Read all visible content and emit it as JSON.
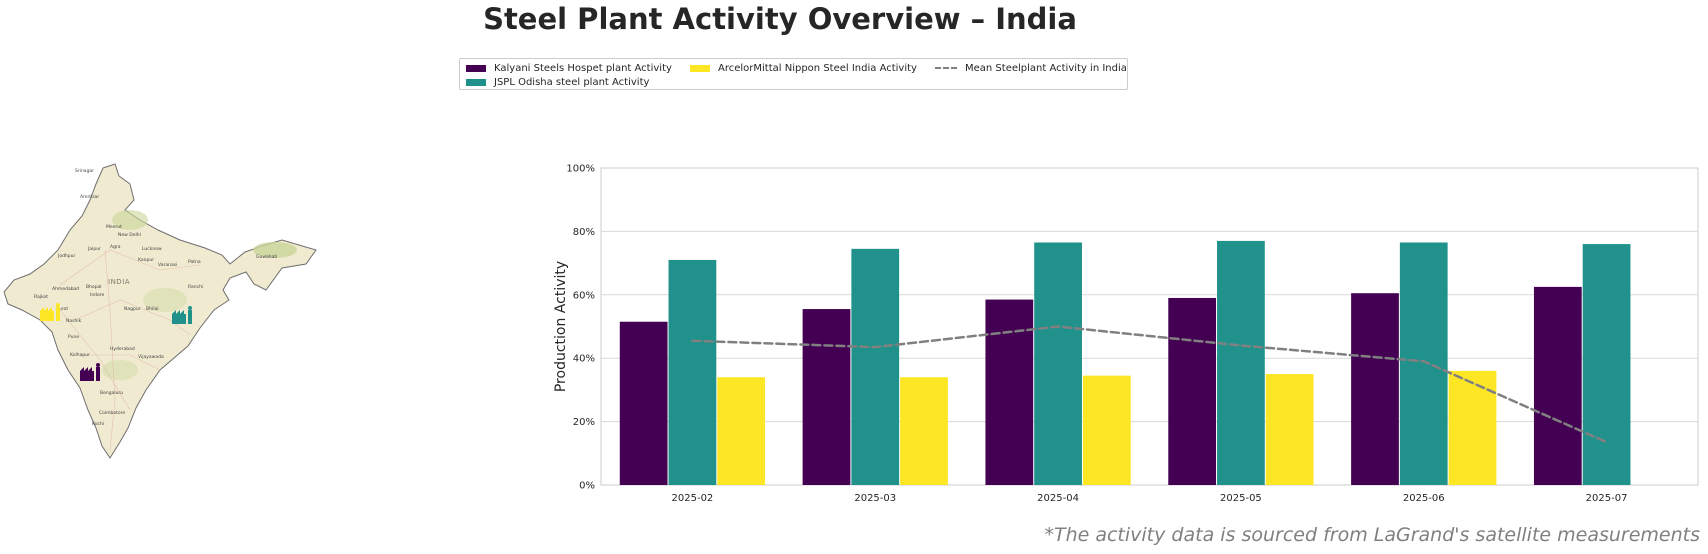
{
  "title": "Steel Plant Activity Overview – India",
  "footnote": "*The activity data is sourced from LaGrand's satellite measurements",
  "map": {
    "country_label": "INDIA",
    "cities": [
      "Srinagar",
      "Amritsar",
      "Meerut",
      "New Delhi",
      "Jaipur",
      "Agra",
      "Lucknow",
      "Jodhpur",
      "Kanpur",
      "Varanasi",
      "Patna",
      "Guwahati",
      "Ahmedabad",
      "Bhopal",
      "Indore",
      "Ranchi",
      "Rajkot",
      "Surat",
      "Nashik",
      "Nagpur",
      "Bhilai",
      "Pune",
      "Kolhapur",
      "Hyderabad",
      "Vijayawada",
      "Bengaluru",
      "Coimbatore",
      "Kochi"
    ],
    "plant_icons": [
      {
        "name": "ArcelorMittal Nippon Steel India",
        "color": "#fde725",
        "icon": "factory-icon"
      },
      {
        "name": "JSPL Odisha steel plant",
        "color": "#21918c",
        "icon": "factory-icon"
      },
      {
        "name": "Kalyani Steels Hospet plant",
        "color": "#440154",
        "icon": "factory-icon"
      }
    ]
  },
  "chart_data": {
    "type": "bar",
    "title": "",
    "xlabel": "",
    "ylabel": "Production Activity",
    "ylim": [
      0,
      100
    ],
    "yticks": [
      "0%",
      "20%",
      "40%",
      "60%",
      "80%",
      "100%"
    ],
    "grid": true,
    "legend_position": "top-center",
    "categories": [
      "2025-02",
      "2025-03",
      "2025-04",
      "2025-05",
      "2025-06",
      "2025-07"
    ],
    "series": [
      {
        "name": "Kalyani Steels Hospet plant Activity",
        "color": "#440154",
        "type": "bar",
        "values": [
          51.5,
          55.5,
          58.5,
          59.0,
          60.5,
          62.5
        ]
      },
      {
        "name": "JSPL Odisha steel plant Activity",
        "color": "#21918c",
        "type": "bar",
        "values": [
          71.0,
          74.5,
          76.5,
          77.0,
          76.5,
          76.0
        ]
      },
      {
        "name": "ArcelorMittal Nippon Steel India Activity",
        "color": "#fde725",
        "type": "bar",
        "values": [
          34.0,
          34.0,
          34.5,
          35.0,
          36.0,
          null
        ]
      },
      {
        "name": "Mean Steelplant Activity in India",
        "color": "#808080",
        "type": "line-dashed",
        "values": [
          45.5,
          43.5,
          50.0,
          44.0,
          39.0,
          13.5
        ]
      }
    ]
  }
}
